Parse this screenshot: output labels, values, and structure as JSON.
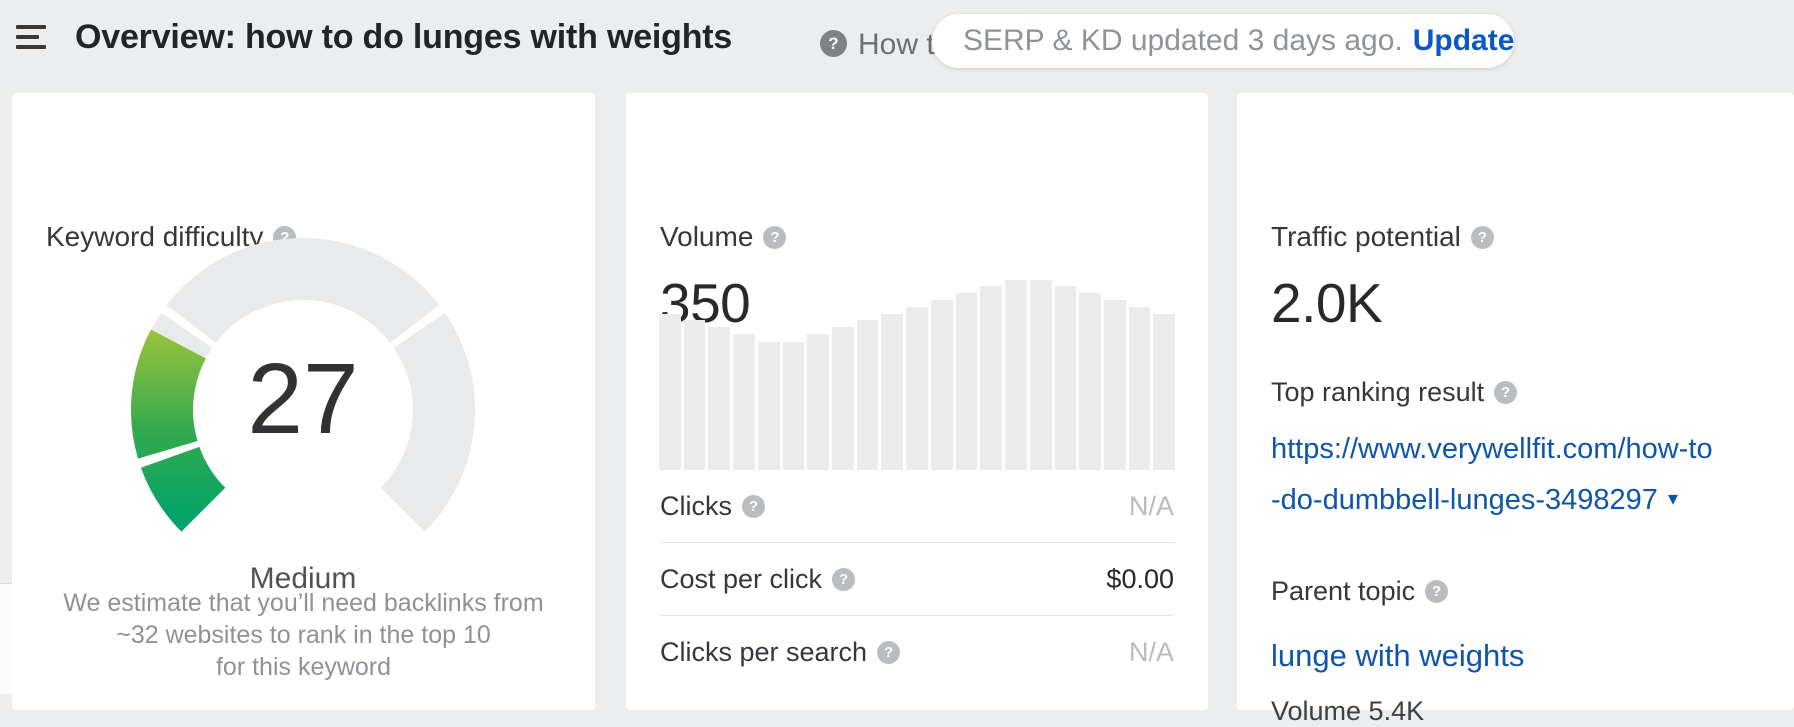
{
  "header": {
    "title": "Overview: how to do lunges with weights",
    "context_text": "How to",
    "pill": {
      "message": "SERP & KD updated 3 days ago.",
      "action": "Update"
    }
  },
  "icons": {
    "help_glyph": "?",
    "caret_down": "▾"
  },
  "colors": {
    "page_background": "#ebedef",
    "card_background": "#ffffff",
    "link_blue": "#0f55aa",
    "update_blue": "#0a58c4",
    "kd_gradient": [
      "#00a36b",
      "#35aa4c",
      "#97c23c"
    ],
    "gauge_empty": "#e8eaec",
    "bar_gray": "#ebebeb"
  },
  "cards": {
    "keyword_difficulty": {
      "label": "Keyword difficulty",
      "value": 27,
      "rating": "Medium",
      "note_lines": [
        "We estimate that you’ll need backlinks from",
        "~32 websites to rank in the top 10",
        "for this keyword"
      ]
    },
    "volume": {
      "label": "Volume",
      "value": "350",
      "rows": [
        {
          "label": "Clicks",
          "value": "N/A"
        },
        {
          "label": "Cost per click",
          "value": "$0.00"
        },
        {
          "label": "Clicks per search",
          "value": "N/A"
        }
      ]
    },
    "traffic_potential": {
      "label": "Traffic potential",
      "value": "2.0K",
      "top_ranking": {
        "label": "Top ranking result",
        "url": "https://www.verywellfit.com/how-to-do-dumbbell-lunges-3498297",
        "url_lines": [
          "https://www.verywellfit.com/how-to",
          "-do-dumbbell-lunges-3498297"
        ]
      },
      "parent_topic": {
        "label": "Parent topic",
        "name": "lunge with weights",
        "volume_text": "Volume 5.4K"
      }
    }
  },
  "chart_data": [
    {
      "type": "gauge",
      "title": "Keyword difficulty",
      "value": 27,
      "max": 100,
      "rating": "Medium",
      "arc_degrees": 270,
      "segment_bounds": [
        0,
        10,
        30,
        70,
        100
      ],
      "colors": {
        "filled_gradient": [
          "#00a36b",
          "#35aa4c",
          "#97c23c"
        ],
        "empty": "#e8eaec"
      }
    },
    {
      "type": "bar",
      "title": "Volume monthly trend (no axes shown)",
      "values": [
        156,
        150,
        143,
        136,
        128,
        128,
        136,
        143,
        150,
        156,
        163,
        170,
        177,
        184,
        190,
        190,
        184,
        177,
        170,
        163,
        156
      ],
      "unit": "relative-height-px",
      "bar_color": "#ebebeb"
    }
  ]
}
